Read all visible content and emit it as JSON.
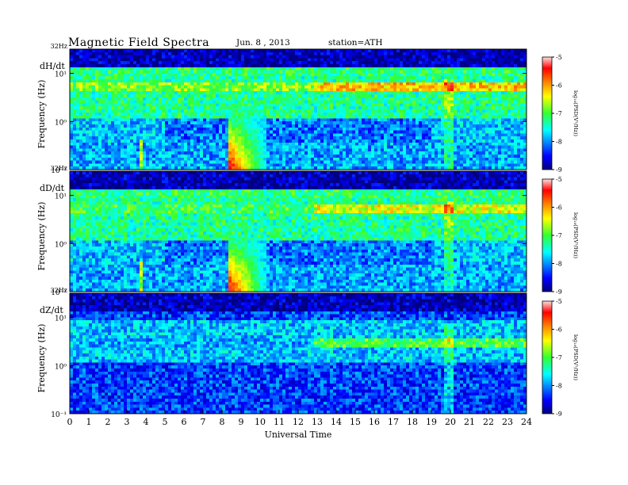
{
  "header": {
    "title": "Magnetic  Field  Spectra",
    "date": "Jun.  8  , 2013",
    "station": "station=ATH"
  },
  "chart_data": [
    {
      "type": "heatmap",
      "panel_label": "dH/dt",
      "ylabel": "Frequency  (Hz)",
      "yscale": "log",
      "ylim": [
        0.1,
        32
      ],
      "y_top_label": "32Hz",
      "y_ticks": [
        "10¹",
        "10⁰",
        "10⁻¹"
      ],
      "xlim": [
        0,
        24
      ],
      "colorbar": {
        "label": "log₁₀(PSD(V²/Hz))",
        "ticks": [
          "-5",
          "-6",
          "-7",
          "-8",
          "-9"
        ],
        "range": [
          -9,
          -5
        ]
      },
      "features": [
        {
          "name": "persistent band",
          "freq_hz": 5.0,
          "level": -6.2
        },
        {
          "name": "intense burst",
          "t_start": 8.3,
          "t_end": 10.4,
          "freq_max_hz": 2.5,
          "peak_level": -5.2
        }
      ]
    },
    {
      "type": "heatmap",
      "panel_label": "dD/dt",
      "ylabel": "Frequency  (Hz)",
      "yscale": "log",
      "ylim": [
        0.1,
        32
      ],
      "y_top_label": "32Hz",
      "y_ticks": [
        "10¹",
        "10⁰",
        "10⁻¹"
      ],
      "xlim": [
        0,
        24
      ],
      "colorbar": {
        "label": "log₁₀(PSD(V²/Hz))",
        "ticks": [
          "-5",
          "-6",
          "-7",
          "-8",
          "-9"
        ],
        "range": [
          -9,
          -5
        ]
      },
      "features": [
        {
          "name": "persistent band",
          "freq_hz": 5.0,
          "level": -6.5
        },
        {
          "name": "intense burst",
          "t_start": 8.3,
          "t_end": 10.4,
          "freq_max_hz": 2.5,
          "peak_level": -5.2
        }
      ]
    },
    {
      "type": "heatmap",
      "panel_label": "dZ/dt",
      "ylabel": "Frequency  (Hz)",
      "yscale": "log",
      "ylim": [
        0.1,
        32
      ],
      "y_top_label": "32Hz",
      "y_ticks": [
        "10¹",
        "10⁰",
        "10⁻¹"
      ],
      "xlim": [
        0,
        24
      ],
      "xlabel": "Universal Time",
      "x_ticks": [
        "0",
        "1",
        "2",
        "3",
        "4",
        "5",
        "6",
        "7",
        "8",
        "9",
        "10",
        "11",
        "12",
        "13",
        "14",
        "15",
        "16",
        "17",
        "18",
        "19",
        "20",
        "21",
        "22",
        "23",
        "24"
      ],
      "colorbar": {
        "label": "log₁₀(PSD(V²/Hz))",
        "ticks": [
          "-5",
          "-6",
          "-7",
          "-8",
          "-9"
        ],
        "range": [
          -9,
          -5
        ]
      },
      "features": [
        {
          "name": "persistent band",
          "freq_hz": 3.0,
          "level": -7.0
        }
      ]
    }
  ]
}
